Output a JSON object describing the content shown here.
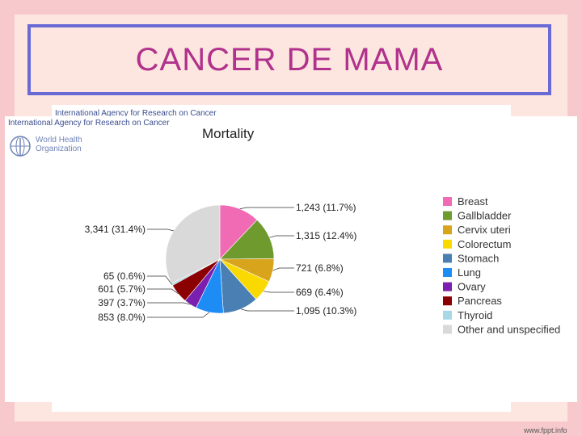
{
  "slide": {
    "title": "CANCER DE MAMA",
    "footer": "www.fppt.info"
  },
  "source": {
    "org_line_back": "International Agency for Research on Cancer",
    "org_line_front": "International Agency for Research on Cancer",
    "who_line1": "World Health",
    "who_line2": "Organization"
  },
  "chart_data": {
    "type": "pie",
    "title": "Mortality",
    "legend_position": "right",
    "slices": [
      {
        "name": "Breast",
        "value": 1243,
        "label": "1,243 (11.7%)",
        "color": "#f06ab4"
      },
      {
        "name": "Gallbladder",
        "value": 1315,
        "label": "1,315 (12.4%)",
        "color": "#6f9a2e"
      },
      {
        "name": "Cervix uteri",
        "value": 721,
        "label": "721 (6.8%)",
        "color": "#d8a41c"
      },
      {
        "name": "Colorectum",
        "value": 669,
        "label": "669 (6.4%)",
        "color": "#fad900"
      },
      {
        "name": "Stomach",
        "value": 1095,
        "label": "1,095 (10.3%)",
        "color": "#4a7fb3"
      },
      {
        "name": "Lung",
        "value": 853,
        "label": "853 (8.0%)",
        "color": "#1e8cf5"
      },
      {
        "name": "Ovary",
        "value": 397,
        "label": "397 (3.7%)",
        "color": "#7a1fae"
      },
      {
        "name": "Pancreas",
        "value": 601,
        "label": "601 (5.7%)",
        "color": "#8b0000"
      },
      {
        "name": "Thyroid",
        "value": 65,
        "label": "65 (0.6%)",
        "color": "#a8d8e6"
      },
      {
        "name": "Other and unspecified",
        "value": 3341,
        "label": "3,341 (31.4%)",
        "color": "#d9d9d9"
      }
    ]
  }
}
